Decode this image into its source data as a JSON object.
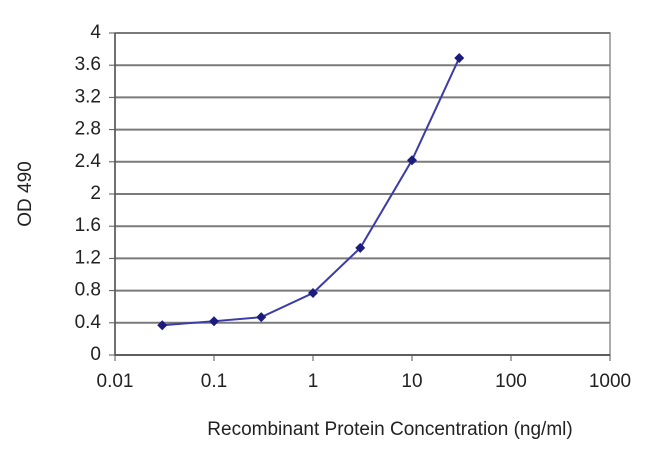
{
  "chart_data": {
    "type": "line",
    "x_label": "Recombinant Protein Concentration (ng/ml)",
    "y_label": "OD 490",
    "x": [
      0.03,
      0.1,
      0.3,
      1,
      3,
      10,
      30
    ],
    "series": [
      {
        "name": "OD 490",
        "color": "#3c3ca8",
        "marker_color": "#1c1c7c",
        "values": [
          0.37,
          0.42,
          0.47,
          0.77,
          1.33,
          2.42,
          3.69
        ]
      }
    ],
    "x_log": true,
    "xlim": [
      0.01,
      1000
    ],
    "xticks": [
      0.01,
      0.1,
      1,
      10,
      100,
      1000
    ],
    "ylim": [
      0,
      4
    ],
    "yticks": [
      0,
      0.4,
      0.8,
      1.2,
      1.6,
      2,
      2.4,
      2.8,
      3.2,
      3.6,
      4
    ],
    "grid": true
  }
}
